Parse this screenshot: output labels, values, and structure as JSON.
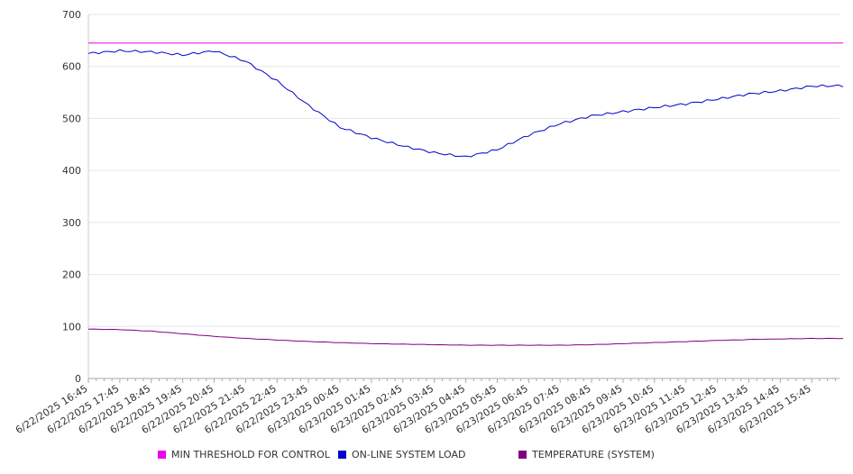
{
  "chart_data": {
    "type": "line",
    "title": "",
    "xlabel": "",
    "ylabel": "",
    "ylim": [
      0,
      700
    ],
    "yticks": [
      0,
      100,
      200,
      300,
      400,
      500,
      600,
      700
    ],
    "grid": true,
    "legend_position": "bottom",
    "x_tick_labels": [
      "6/22/2025 16:45",
      "6/22/2025 17:45",
      "6/22/2025 18:45",
      "6/22/2025 19:45",
      "6/22/2025 20:45",
      "6/22/2025 21:45",
      "6/22/2025 22:45",
      "6/22/2025 23:45",
      "6/23/2025 00:45",
      "6/23/2025 01:45",
      "6/23/2025 02:45",
      "6/23/2025 03:45",
      "6/23/2025 04:45",
      "6/23/2025 05:45",
      "6/23/2025 06:45",
      "6/23/2025 07:45",
      "6/23/2025 08:45",
      "6/23/2025 09:45",
      "6/23/2025 10:45",
      "6/23/2025 11:45",
      "6/23/2025 12:45",
      "6/23/2025 13:45",
      "6/23/2025 14:45",
      "6/23/2025 15:45"
    ],
    "x": [
      "6/22/2025 16:45",
      "6/22/2025 17:45",
      "6/22/2025 18:45",
      "6/22/2025 19:45",
      "6/22/2025 20:45",
      "6/22/2025 21:45",
      "6/22/2025 22:45",
      "6/22/2025 23:45",
      "6/23/2025 00:45",
      "6/23/2025 01:45",
      "6/23/2025 02:45",
      "6/23/2025 03:45",
      "6/23/2025 04:45",
      "6/23/2025 05:45",
      "6/23/2025 06:45",
      "6/23/2025 07:45",
      "6/23/2025 08:45",
      "6/23/2025 09:45",
      "6/23/2025 10:45",
      "6/23/2025 11:45",
      "6/23/2025 12:45",
      "6/23/2025 13:45",
      "6/23/2025 14:45",
      "6/23/2025 15:45",
      "6/23/2025 16:30"
    ],
    "series": [
      {
        "name": "MIN THRESHOLD FOR CONTROL",
        "color": "#ee00ee",
        "values": [
          645,
          645,
          645,
          645,
          645,
          645,
          645,
          645,
          645,
          645,
          645,
          645,
          645,
          645,
          645,
          645,
          645,
          645,
          645,
          645,
          645,
          645,
          645,
          645,
          645
        ]
      },
      {
        "name": "ON-LINE SYSTEM LOAD",
        "color": "#0000cc",
        "values": [
          625,
          630,
          628,
          622,
          630,
          610,
          572,
          525,
          483,
          463,
          447,
          434,
          426,
          440,
          468,
          490,
          505,
          513,
          521,
          528,
          537,
          547,
          553,
          562,
          563
        ]
      },
      {
        "name": "TEMPERATURE (SYSTEM)",
        "color": "#800080",
        "values": [
          95,
          94,
          91,
          86,
          81,
          77,
          74,
          71,
          69,
          67,
          66,
          65,
          64,
          64,
          64,
          64,
          65,
          67,
          69,
          71,
          73,
          75,
          76,
          77,
          77
        ]
      }
    ]
  }
}
